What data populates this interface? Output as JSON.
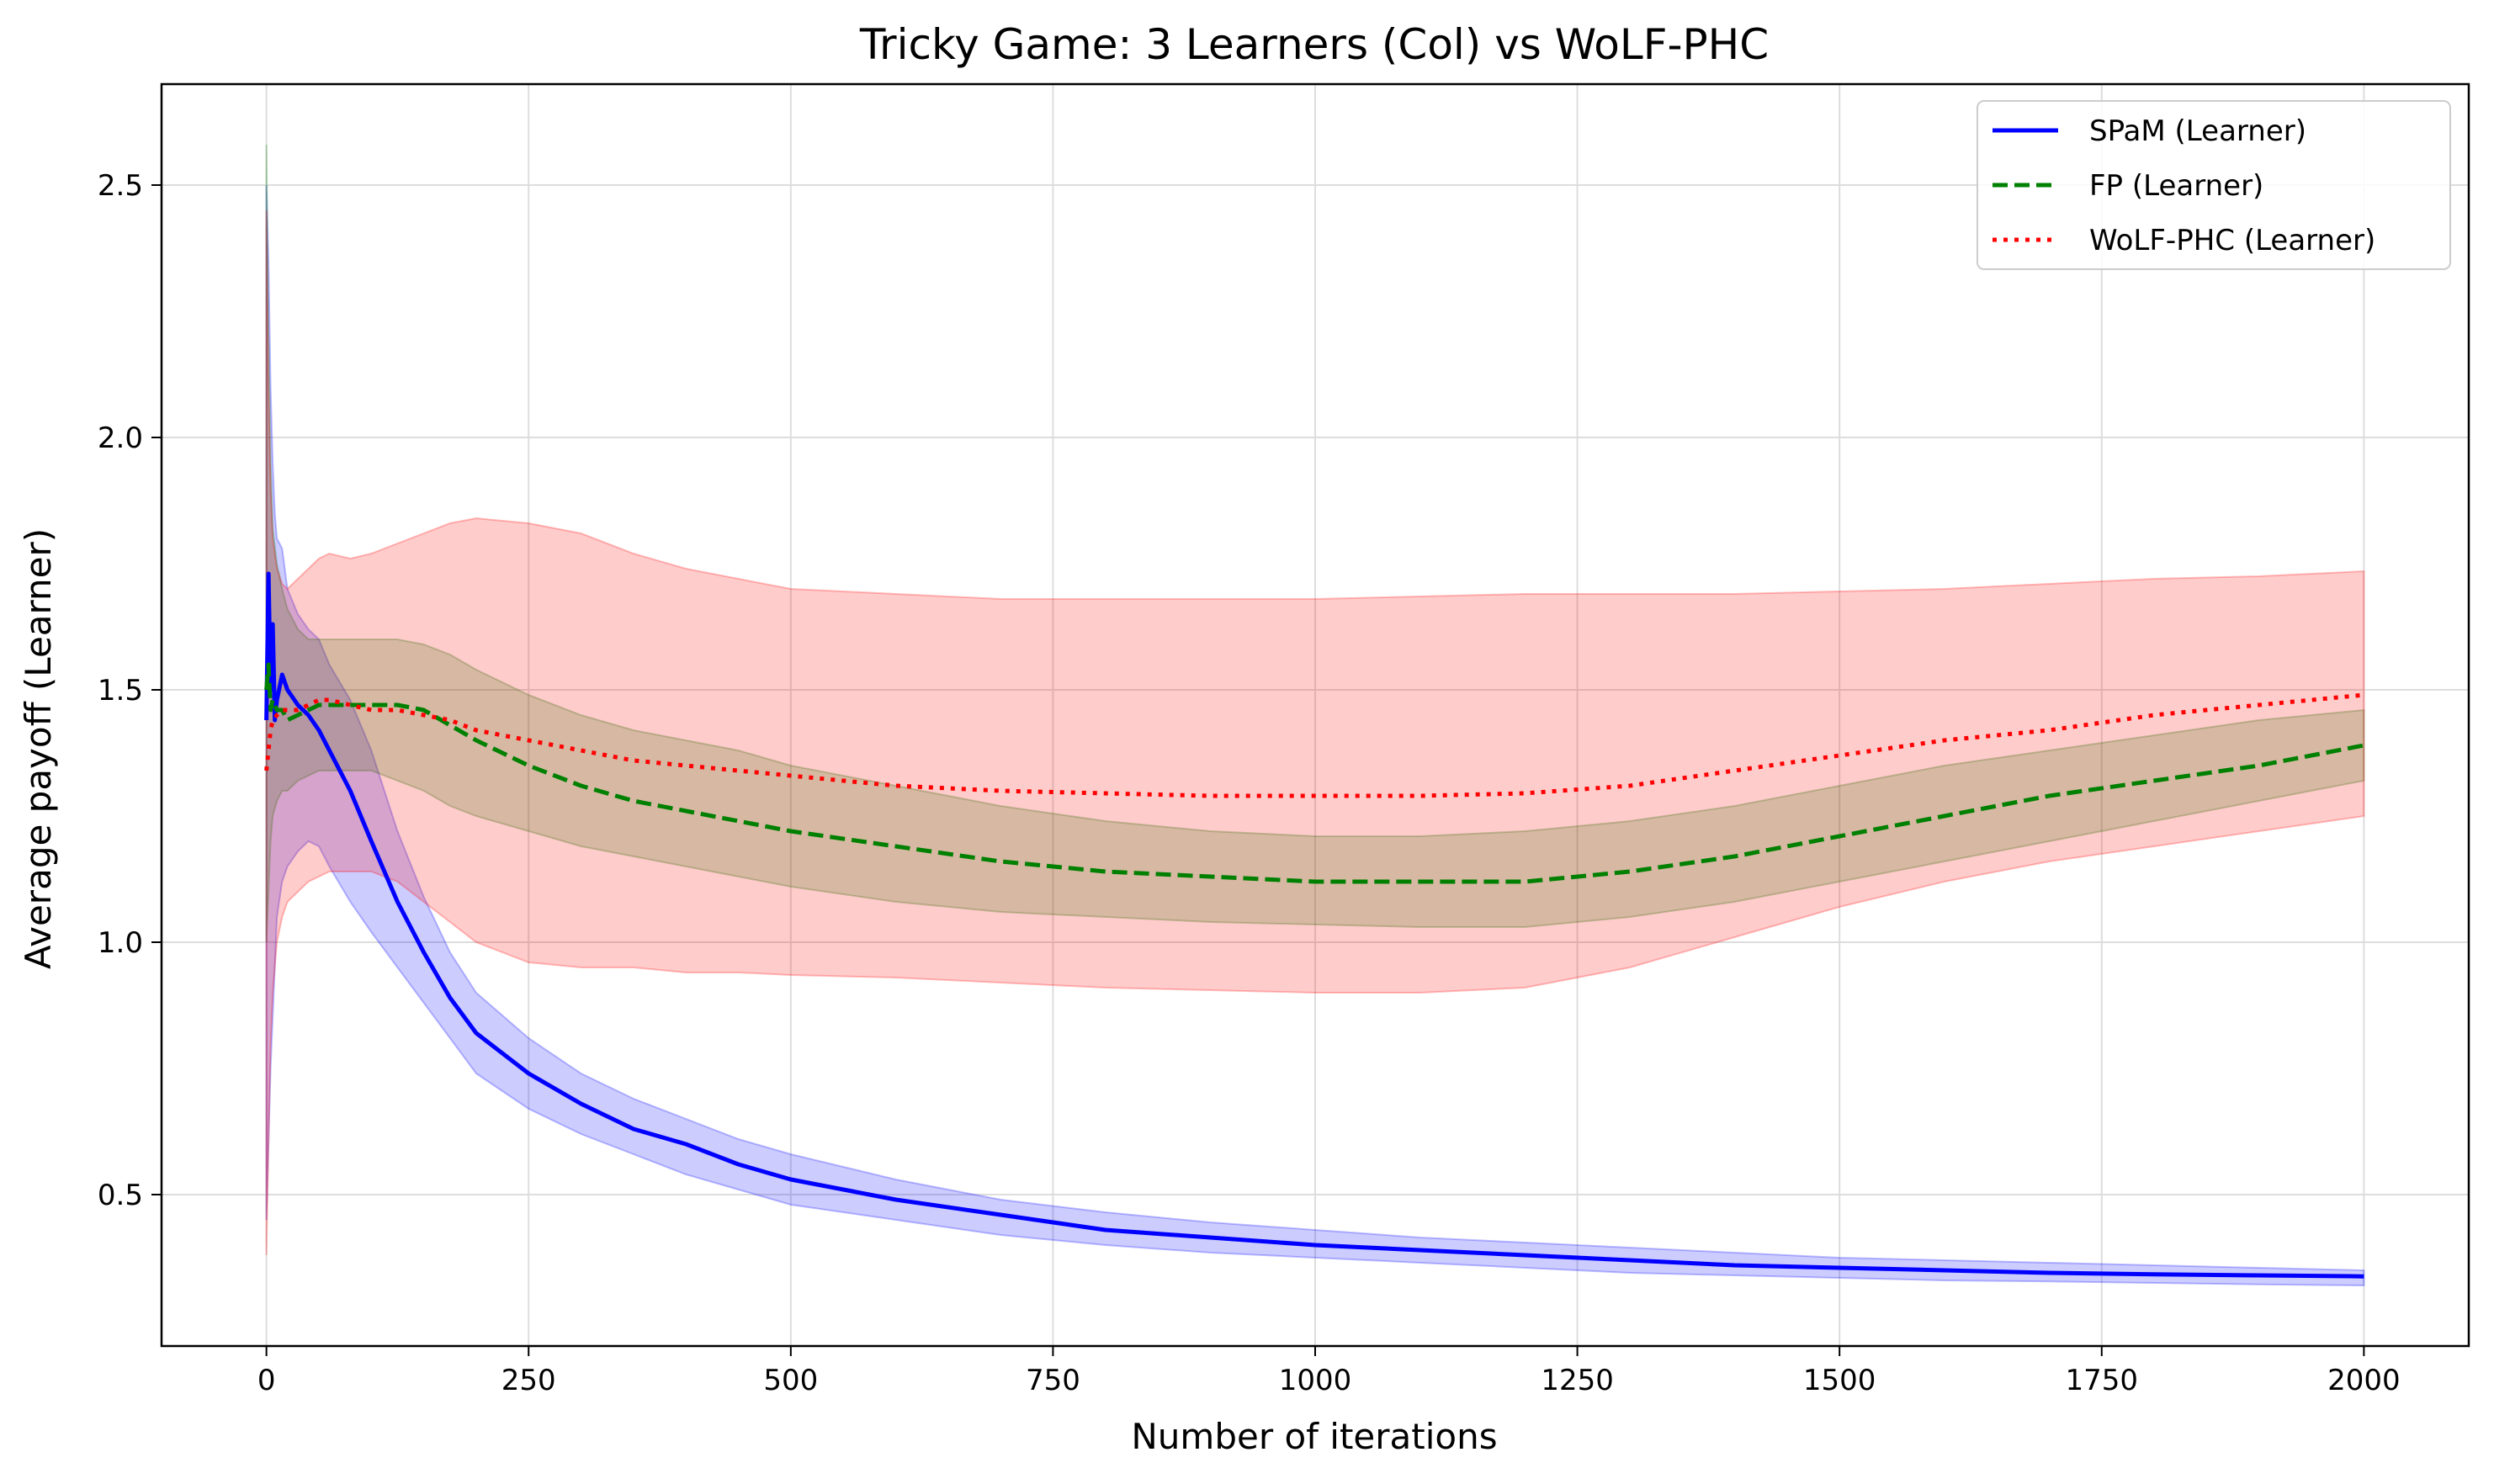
{
  "chart_data": {
    "type": "line",
    "title": "Tricky Game: 3 Learners (Col) vs WoLF-PHC",
    "xlabel": "Number of iterations",
    "ylabel": "Average payoff (Learner)",
    "xlim": [
      -100,
      2100
    ],
    "ylim": [
      0.2,
      2.7
    ],
    "x_ticks": [
      0,
      250,
      500,
      750,
      1000,
      1250,
      1500,
      1750,
      2000
    ],
    "y_ticks": [
      0.5,
      1.0,
      1.5,
      2.0,
      2.5
    ],
    "x_tick_labels": [
      "0",
      "250",
      "500",
      "750",
      "1000",
      "1250",
      "1500",
      "1750",
      "2000"
    ],
    "y_tick_labels": [
      "0.5",
      "1.0",
      "1.5",
      "2.0",
      "2.5"
    ],
    "grid": true,
    "legend_position": "top-right",
    "series": [
      {
        "name": "SPaM (Learner)",
        "color": "#0000ff",
        "linestyle": "solid",
        "x": [
          0,
          2,
          4,
          6,
          8,
          10,
          15,
          20,
          30,
          40,
          50,
          60,
          80,
          100,
          125,
          150,
          175,
          200,
          250,
          300,
          350,
          400,
          450,
          500,
          600,
          700,
          800,
          900,
          1000,
          1100,
          1200,
          1300,
          1400,
          1500,
          1600,
          1700,
          1800,
          1900,
          2000
        ],
        "mean": [
          1.44,
          1.73,
          1.5,
          1.63,
          1.44,
          1.48,
          1.53,
          1.5,
          1.47,
          1.45,
          1.42,
          1.38,
          1.3,
          1.2,
          1.08,
          0.98,
          0.89,
          0.82,
          0.74,
          0.68,
          0.63,
          0.6,
          0.56,
          0.53,
          0.49,
          0.46,
          0.43,
          0.415,
          0.4,
          0.39,
          0.38,
          0.37,
          0.36,
          0.355,
          0.35,
          0.345,
          0.342,
          0.34,
          0.338
        ],
        "lower": [
          0.45,
          0.6,
          0.75,
          0.85,
          0.95,
          1.05,
          1.12,
          1.15,
          1.18,
          1.2,
          1.19,
          1.15,
          1.08,
          1.02,
          0.95,
          0.88,
          0.81,
          0.74,
          0.67,
          0.62,
          0.58,
          0.54,
          0.51,
          0.48,
          0.45,
          0.42,
          0.4,
          0.385,
          0.375,
          0.365,
          0.355,
          0.345,
          0.34,
          0.335,
          0.33,
          0.328,
          0.325,
          0.322,
          0.32
        ],
        "upper": [
          2.5,
          2.35,
          2.1,
          1.95,
          1.85,
          1.8,
          1.78,
          1.7,
          1.65,
          1.62,
          1.6,
          1.55,
          1.48,
          1.38,
          1.22,
          1.09,
          0.98,
          0.9,
          0.81,
          0.74,
          0.69,
          0.65,
          0.61,
          0.58,
          0.53,
          0.49,
          0.465,
          0.445,
          0.43,
          0.415,
          0.405,
          0.395,
          0.385,
          0.375,
          0.37,
          0.365,
          0.36,
          0.355,
          0.35
        ]
      },
      {
        "name": "FP (Learner)",
        "color": "#008000",
        "linestyle": "dashed",
        "x": [
          0,
          2,
          4,
          6,
          10,
          15,
          20,
          30,
          40,
          50,
          60,
          80,
          100,
          125,
          150,
          175,
          200,
          250,
          300,
          350,
          400,
          450,
          500,
          600,
          700,
          800,
          900,
          1000,
          1100,
          1200,
          1300,
          1400,
          1500,
          1600,
          1700,
          1800,
          1900,
          2000
        ],
        "mean": [
          1.5,
          1.55,
          1.46,
          1.48,
          1.46,
          1.46,
          1.44,
          1.45,
          1.46,
          1.47,
          1.47,
          1.47,
          1.47,
          1.47,
          1.46,
          1.43,
          1.4,
          1.35,
          1.31,
          1.28,
          1.26,
          1.24,
          1.22,
          1.19,
          1.16,
          1.14,
          1.13,
          1.12,
          1.12,
          1.12,
          1.14,
          1.17,
          1.21,
          1.25,
          1.29,
          1.32,
          1.35,
          1.39
        ],
        "lower": [
          1.0,
          1.1,
          1.2,
          1.25,
          1.28,
          1.3,
          1.3,
          1.32,
          1.33,
          1.34,
          1.34,
          1.34,
          1.34,
          1.32,
          1.3,
          1.27,
          1.25,
          1.22,
          1.19,
          1.17,
          1.15,
          1.13,
          1.11,
          1.08,
          1.06,
          1.05,
          1.04,
          1.035,
          1.03,
          1.03,
          1.05,
          1.08,
          1.12,
          1.16,
          1.2,
          1.24,
          1.28,
          1.32
        ],
        "upper": [
          2.58,
          2.2,
          1.95,
          1.82,
          1.75,
          1.7,
          1.66,
          1.62,
          1.6,
          1.6,
          1.6,
          1.6,
          1.6,
          1.6,
          1.59,
          1.57,
          1.54,
          1.49,
          1.45,
          1.42,
          1.4,
          1.38,
          1.35,
          1.31,
          1.27,
          1.24,
          1.22,
          1.21,
          1.21,
          1.22,
          1.24,
          1.27,
          1.31,
          1.35,
          1.38,
          1.41,
          1.44,
          1.46
        ]
      },
      {
        "name": "WoLF-PHC (Learner)",
        "color": "#ff0000",
        "linestyle": "dotted",
        "x": [
          0,
          2,
          4,
          6,
          10,
          15,
          20,
          30,
          40,
          50,
          60,
          80,
          100,
          125,
          150,
          175,
          200,
          250,
          300,
          350,
          400,
          450,
          500,
          600,
          700,
          800,
          900,
          1000,
          1100,
          1200,
          1300,
          1400,
          1500,
          1600,
          1700,
          1800,
          1900,
          2000
        ],
        "mean": [
          1.34,
          1.38,
          1.42,
          1.44,
          1.45,
          1.46,
          1.46,
          1.46,
          1.47,
          1.48,
          1.48,
          1.47,
          1.46,
          1.46,
          1.45,
          1.44,
          1.42,
          1.4,
          1.38,
          1.36,
          1.35,
          1.34,
          1.33,
          1.31,
          1.3,
          1.295,
          1.29,
          1.29,
          1.29,
          1.295,
          1.31,
          1.34,
          1.37,
          1.4,
          1.42,
          1.45,
          1.47,
          1.49
        ],
        "lower": [
          0.38,
          0.6,
          0.8,
          0.9,
          1.0,
          1.05,
          1.08,
          1.1,
          1.12,
          1.13,
          1.14,
          1.14,
          1.14,
          1.12,
          1.08,
          1.04,
          1.0,
          0.96,
          0.95,
          0.95,
          0.94,
          0.94,
          0.935,
          0.93,
          0.92,
          0.91,
          0.905,
          0.9,
          0.9,
          0.91,
          0.95,
          1.01,
          1.07,
          1.12,
          1.16,
          1.19,
          1.22,
          1.25
        ],
        "upper": [
          2.45,
          2.1,
          1.9,
          1.8,
          1.74,
          1.71,
          1.7,
          1.72,
          1.74,
          1.76,
          1.77,
          1.76,
          1.77,
          1.79,
          1.81,
          1.83,
          1.84,
          1.83,
          1.81,
          1.77,
          1.74,
          1.72,
          1.7,
          1.69,
          1.68,
          1.68,
          1.68,
          1.68,
          1.685,
          1.69,
          1.69,
          1.69,
          1.695,
          1.7,
          1.71,
          1.72,
          1.725,
          1.735
        ]
      }
    ]
  }
}
